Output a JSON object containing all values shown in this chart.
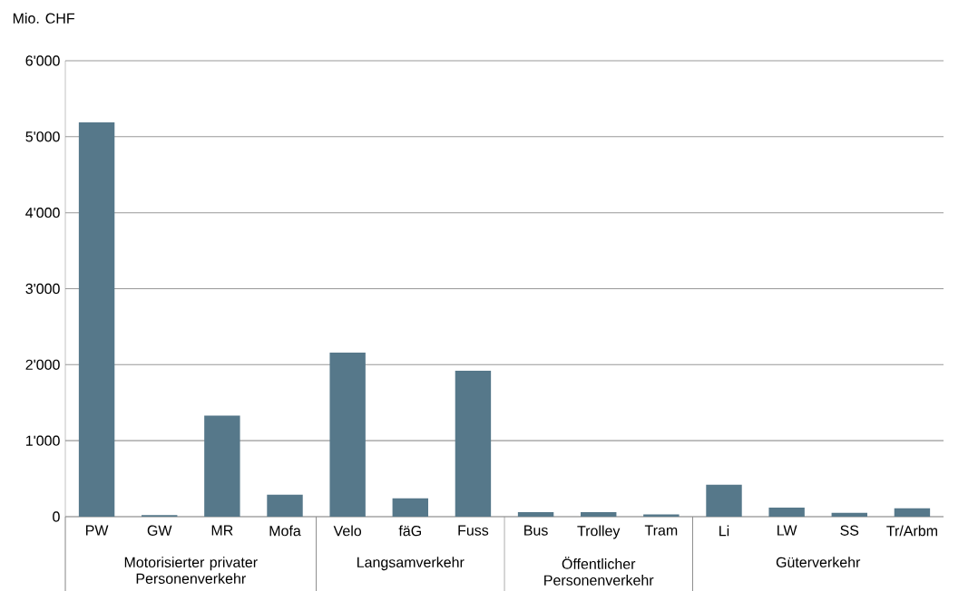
{
  "chart_data": {
    "type": "bar",
    "ylabel": "Mio. CHF",
    "categories": [
      "PW",
      "GW",
      "MR",
      "Mofa",
      "Velo",
      "fäG",
      "Fuss",
      "Bus",
      "Trolley",
      "Tram",
      "Li",
      "LW",
      "SS",
      "Tr/Arbm"
    ],
    "values": [
      5190,
      20,
      1330,
      290,
      2160,
      240,
      1920,
      60,
      60,
      30,
      420,
      120,
      50,
      110
    ],
    "color": "#56788a",
    "ylim": [
      0,
      6000
    ],
    "yticks": [
      0,
      {
        "value": 1000,
        "label": "1'000"
      },
      {
        "value": 2000,
        "label": "2'000"
      },
      {
        "value": 3000,
        "label": "3'000"
      },
      {
        "value": 4000,
        "label": "4'000"
      },
      {
        "value": 5000,
        "label": "5'000"
      },
      {
        "value": 6000,
        "label": "6'000"
      }
    ],
    "grid": "y",
    "annotations": [
      "Motorisierter privater Personenverkehr",
      "Langsamverkehr",
      "Öffentlicher Personenverkehr",
      "Güterverkehr"
    ]
  }
}
